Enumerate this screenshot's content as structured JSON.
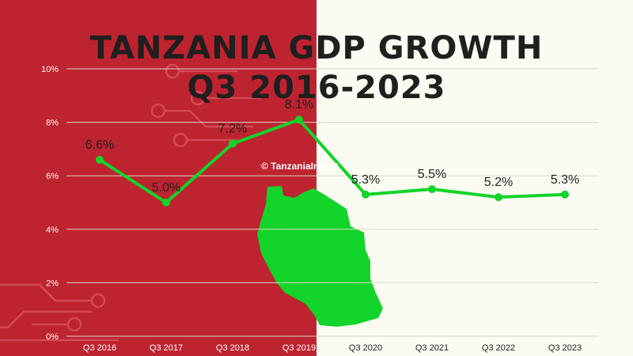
{
  "colors": {
    "left_bg": "#be2330",
    "right_bg": "#fcfbf1",
    "line": "#12d42a",
    "map": "#12d42a",
    "text": "#1f1f1f"
  },
  "title_line1": "TANZANIA GDP GROWTH",
  "title_line2": "Q3 2016-2023",
  "credit": "© TanzaniaInvest",
  "icons": [
    "tanzania-map-icon",
    "circuit-decoration-icon"
  ],
  "chart_data": {
    "type": "line",
    "title": "TANZANIA GDP GROWTH Q3 2016-2023",
    "categories": [
      "Q3 2016",
      "Q3 2017",
      "Q3 2018",
      "Q3 2019",
      "Q3 2020",
      "Q3 2021",
      "Q3 2022",
      "Q3 2023"
    ],
    "values": [
      6.6,
      5.0,
      7.2,
      8.1,
      5.3,
      5.5,
      5.2,
      5.3
    ],
    "value_labels": [
      "6.6%",
      "5.0%",
      "7.2%",
      "8.1%",
      "5.3%",
      "5.5%",
      "5.2%",
      "5.3%"
    ],
    "ylim": [
      0,
      10
    ],
    "yticks": [
      0,
      2,
      4,
      6,
      8,
      10
    ],
    "ytick_labels": [
      "0%",
      "2%",
      "4%",
      "6%",
      "8%",
      "10%"
    ],
    "grid": true,
    "legend": "none"
  }
}
